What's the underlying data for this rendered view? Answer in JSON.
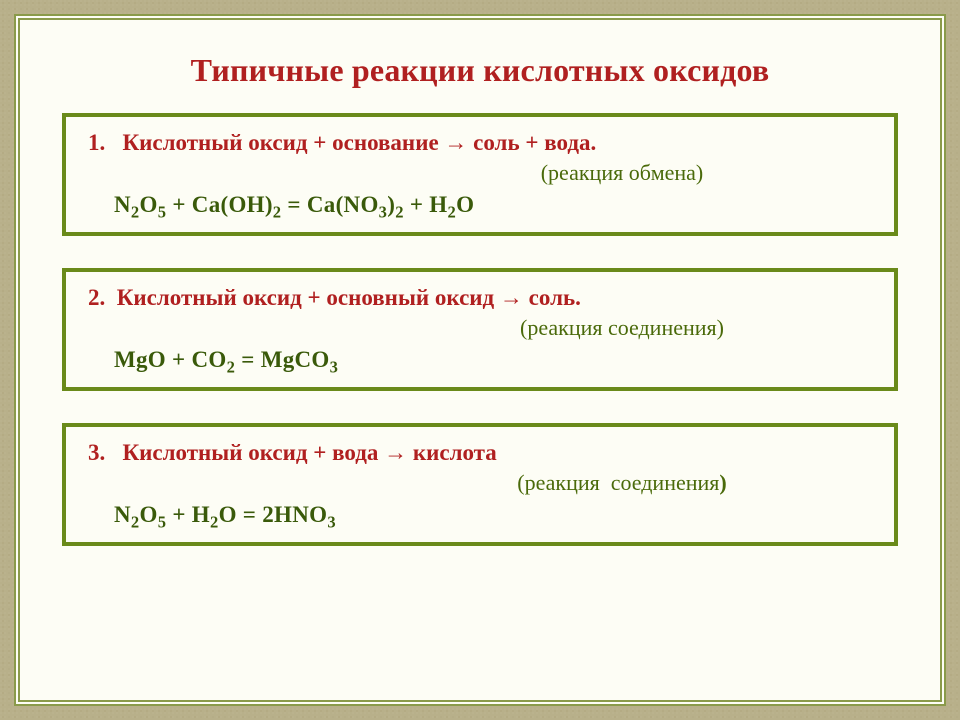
{
  "colors": {
    "title": "#b02020",
    "rule": "#b02020",
    "reaction_type": "#4a6a0a",
    "equation": "#3a5a0a",
    "box_border": "#6a8a1a",
    "frame_border": "#8a9a4a",
    "page_bg": "#fdfdf5",
    "outer_bg": "#b8b08a"
  },
  "fonts": {
    "title_size_pt": 32,
    "rule_size_pt": 23,
    "reaction_type_size_pt": 22,
    "equation_size_pt": 23,
    "family": "Georgia / Times-like serif"
  },
  "title": "Типичные реакции кислотных оксидов",
  "boxes": [
    {
      "number": "1.",
      "rule_html": "Кислотный оксид + основание → соль + вода.",
      "reaction_type": "(реакция обмена)",
      "equation_html": "N<sub>2</sub>O<sub>5</sub>  + Ca(OH)<sub>2</sub>  =  Ca(NO<sub>3</sub>)<sub>2</sub>  + H<sub>2</sub>O"
    },
    {
      "number": "2.",
      "rule_html": "Кислотный оксид + основный оксид → соль.",
      "reaction_type": "(реакция соединения)",
      "equation_html": "MgO + CO<sub>2</sub>  = MgCO<sub>3</sub>"
    },
    {
      "number": "3.",
      "rule_html": "Кислотный оксид + вода → кислота",
      "reaction_type": "(реакция  соединения)",
      "equation_html": "N<sub>2</sub>O<sub>5</sub>  + H<sub>2</sub>O = 2HNO<sub>3</sub>"
    }
  ]
}
